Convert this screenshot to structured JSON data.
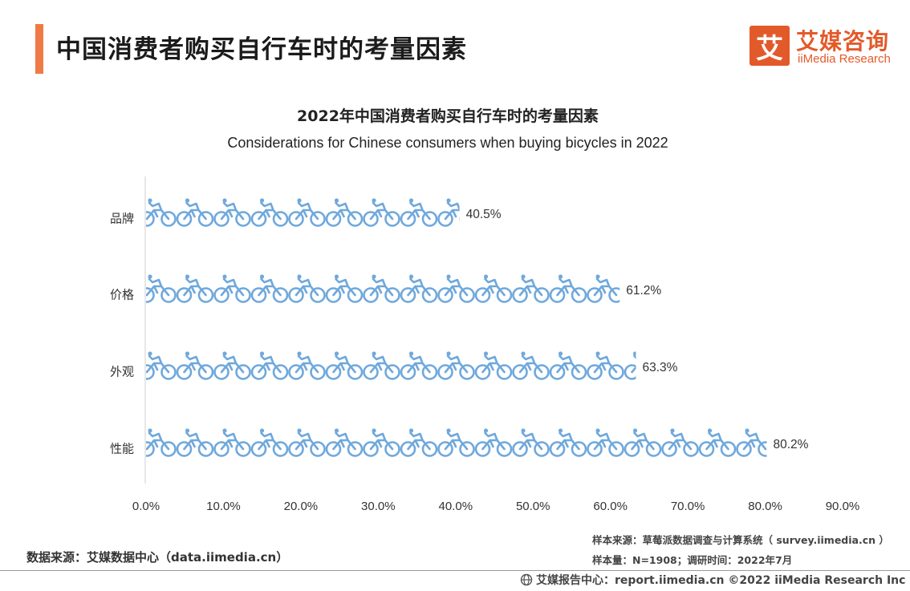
{
  "header": {
    "title": "中国消费者购买自行车时的考量因素",
    "logo_mark": "艾",
    "logo_cn": "艾媒咨询",
    "logo_en": "iiMedia Research"
  },
  "chart_data": {
    "type": "bar",
    "orientation": "horizontal",
    "style": "pictograph-bicycle-icons",
    "title": "2022年中国消费者购买自行车时的考量因素",
    "subtitle": "Considerations for Chinese consumers when buying bicycles in 2022",
    "categories": [
      "品牌",
      "价格",
      "外观",
      "性能"
    ],
    "values": [
      40.5,
      61.2,
      63.3,
      80.2
    ],
    "data_labels": [
      "40.5%",
      "61.2%",
      "63.3%",
      "80.2%"
    ],
    "xlim": [
      0,
      90
    ],
    "xticks": [
      0,
      10,
      20,
      30,
      40,
      50,
      60,
      70,
      80,
      90
    ],
    "xtick_labels": [
      "0.0%",
      "10.0%",
      "20.0%",
      "30.0%",
      "40.0%",
      "50.0%",
      "60.0%",
      "70.0%",
      "80.0%",
      "90.0%"
    ],
    "grid": false,
    "color": "#6fa8dc"
  },
  "footer": {
    "source": "数据来源：艾媒数据中心（data.iimedia.cn）",
    "sample_source": "样本来源：草莓派数据调查与计算系统（ survey.iimedia.cn ）",
    "sample_size": "样本量：N=1908；调研时间：2022年7月",
    "report": "艾媒报告中心：report.iimedia.cn   ©2022  iiMedia Research  Inc"
  }
}
